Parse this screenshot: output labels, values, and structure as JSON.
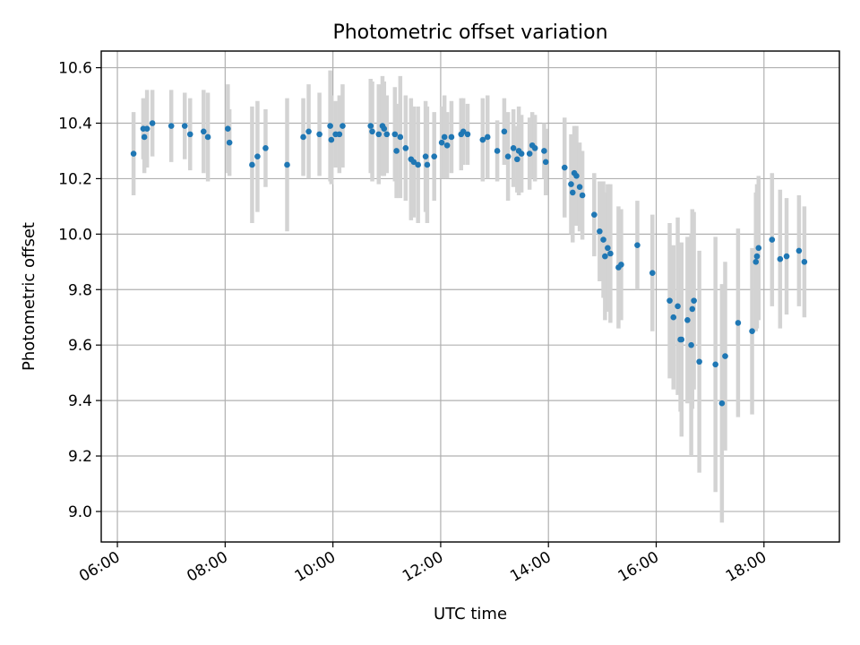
{
  "chart_data": {
    "type": "scatter",
    "title": "Photometric offset variation",
    "xlabel": "UTC time",
    "ylabel": "Photometric offset",
    "xlim": [
      5.7,
      19.4
    ],
    "ylim": [
      8.89,
      10.66
    ],
    "x_ticks": [
      6,
      8,
      10,
      12,
      14,
      16,
      18
    ],
    "x_tick_labels": [
      "06:00",
      "08:00",
      "10:00",
      "12:00",
      "14:00",
      "16:00",
      "18:00"
    ],
    "y_ticks": [
      9.0,
      9.2,
      9.4,
      9.6,
      9.8,
      10.0,
      10.2,
      10.4,
      10.6
    ],
    "y_tick_labels": [
      "9.0",
      "9.2",
      "9.4",
      "9.6",
      "9.8",
      "10.0",
      "10.2",
      "10.4",
      "10.6"
    ],
    "grid": true,
    "colors": {
      "points": "#1f77b4",
      "errorbars": "#d3d3d3"
    },
    "series": [
      {
        "x": [
          6.3,
          6.48,
          6.5,
          6.55,
          6.65,
          7.0,
          7.25,
          7.35,
          7.6,
          7.68,
          8.05,
          8.08,
          8.5,
          8.6,
          8.75,
          9.15,
          9.45,
          9.55,
          9.75,
          9.95,
          9.97,
          10.05,
          10.12,
          10.18,
          10.7,
          10.73,
          10.85,
          10.92,
          10.95,
          11.0,
          11.15,
          11.18,
          11.25,
          11.35,
          11.45,
          11.5,
          11.58,
          11.72,
          11.75,
          11.88,
          12.02,
          12.07,
          12.12,
          12.2,
          12.38,
          12.42,
          12.5,
          12.78,
          12.87,
          13.05,
          13.18,
          13.25,
          13.35,
          13.42,
          13.45,
          13.5,
          13.65,
          13.7,
          13.75,
          13.92,
          13.95,
          14.3,
          14.42,
          14.45,
          14.48,
          14.52,
          14.58,
          14.63,
          14.85,
          14.95,
          15.02,
          15.05,
          15.1,
          15.15,
          15.3,
          15.35,
          15.65,
          15.93,
          16.25,
          16.32,
          16.4,
          16.45,
          16.47,
          16.58,
          16.65,
          16.67,
          16.7,
          16.8,
          17.1,
          17.22,
          17.28,
          17.52,
          17.78,
          17.85,
          17.87,
          17.9,
          18.15,
          18.3,
          18.42,
          18.65,
          18.75
        ],
        "y": [
          10.29,
          10.38,
          10.35,
          10.38,
          10.4,
          10.39,
          10.39,
          10.36,
          10.37,
          10.35,
          10.38,
          10.33,
          10.25,
          10.28,
          10.31,
          10.25,
          10.35,
          10.37,
          10.36,
          10.39,
          10.34,
          10.36,
          10.36,
          10.39,
          10.39,
          10.37,
          10.36,
          10.39,
          10.38,
          10.36,
          10.36,
          10.3,
          10.35,
          10.31,
          10.27,
          10.26,
          10.25,
          10.28,
          10.25,
          10.28,
          10.33,
          10.35,
          10.32,
          10.35,
          10.36,
          10.37,
          10.36,
          10.34,
          10.35,
          10.3,
          10.37,
          10.28,
          10.31,
          10.27,
          10.3,
          10.29,
          10.29,
          10.32,
          10.31,
          10.3,
          10.26,
          10.24,
          10.18,
          10.15,
          10.22,
          10.21,
          10.17,
          10.14,
          10.07,
          10.01,
          9.98,
          9.92,
          9.95,
          9.93,
          9.88,
          9.89,
          9.96,
          9.86,
          9.76,
          9.7,
          9.74,
          9.62,
          9.62,
          9.69,
          9.6,
          9.73,
          9.76,
          9.54,
          9.53,
          9.39,
          9.56,
          9.68,
          9.65,
          9.9,
          9.92,
          9.95,
          9.98,
          9.91,
          9.92,
          9.94,
          9.9
        ],
        "yerr": [
          0.15,
          0.11,
          0.13,
          0.14,
          0.12,
          0.13,
          0.12,
          0.13,
          0.15,
          0.16,
          0.16,
          0.12,
          0.21,
          0.2,
          0.14,
          0.24,
          0.14,
          0.17,
          0.15,
          0.2,
          0.16,
          0.12,
          0.14,
          0.15,
          0.17,
          0.18,
          0.18,
          0.18,
          0.17,
          0.14,
          0.17,
          0.17,
          0.22,
          0.19,
          0.22,
          0.2,
          0.21,
          0.2,
          0.21,
          0.16,
          0.13,
          0.15,
          0.12,
          0.13,
          0.13,
          0.12,
          0.11,
          0.15,
          0.15,
          0.11,
          0.12,
          0.16,
          0.14,
          0.12,
          0.16,
          0.14,
          0.13,
          0.12,
          0.12,
          0.1,
          0.12,
          0.18,
          0.18,
          0.18,
          0.17,
          0.18,
          0.16,
          0.16,
          0.15,
          0.18,
          0.21,
          0.23,
          0.23,
          0.25,
          0.22,
          0.2,
          0.16,
          0.21,
          0.28,
          0.26,
          0.32,
          0.26,
          0.35,
          0.3,
          0.4,
          0.36,
          0.32,
          0.4,
          0.46,
          0.43,
          0.34,
          0.34,
          0.3,
          0.25,
          0.26,
          0.26,
          0.24,
          0.25,
          0.21,
          0.2,
          0.2
        ]
      }
    ]
  }
}
